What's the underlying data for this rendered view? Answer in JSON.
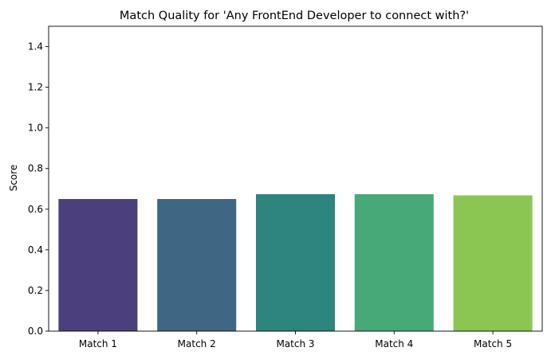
{
  "chart_data": {
    "type": "bar",
    "title": "Match Quality for 'Any FrontEnd Developer to connect with?'",
    "xlabel": "",
    "ylabel": "Score",
    "categories": [
      "Match 1",
      "Match 2",
      "Match 3",
      "Match 4",
      "Match 5"
    ],
    "values": [
      0.65,
      0.65,
      0.674,
      0.674,
      0.668
    ],
    "colors": [
      "#4c3f7d",
      "#3f6683",
      "#2e847e",
      "#47a978",
      "#8bc653"
    ],
    "ylim": [
      0,
      1.5
    ],
    "yticks": [
      0.0,
      0.2,
      0.4,
      0.6,
      0.8,
      1.0,
      1.2,
      1.4
    ],
    "ytick_labels": [
      "0.0",
      "0.2",
      "0.4",
      "0.6",
      "0.8",
      "1.0",
      "1.2",
      "1.4"
    ],
    "grid": false,
    "legend": "none"
  }
}
